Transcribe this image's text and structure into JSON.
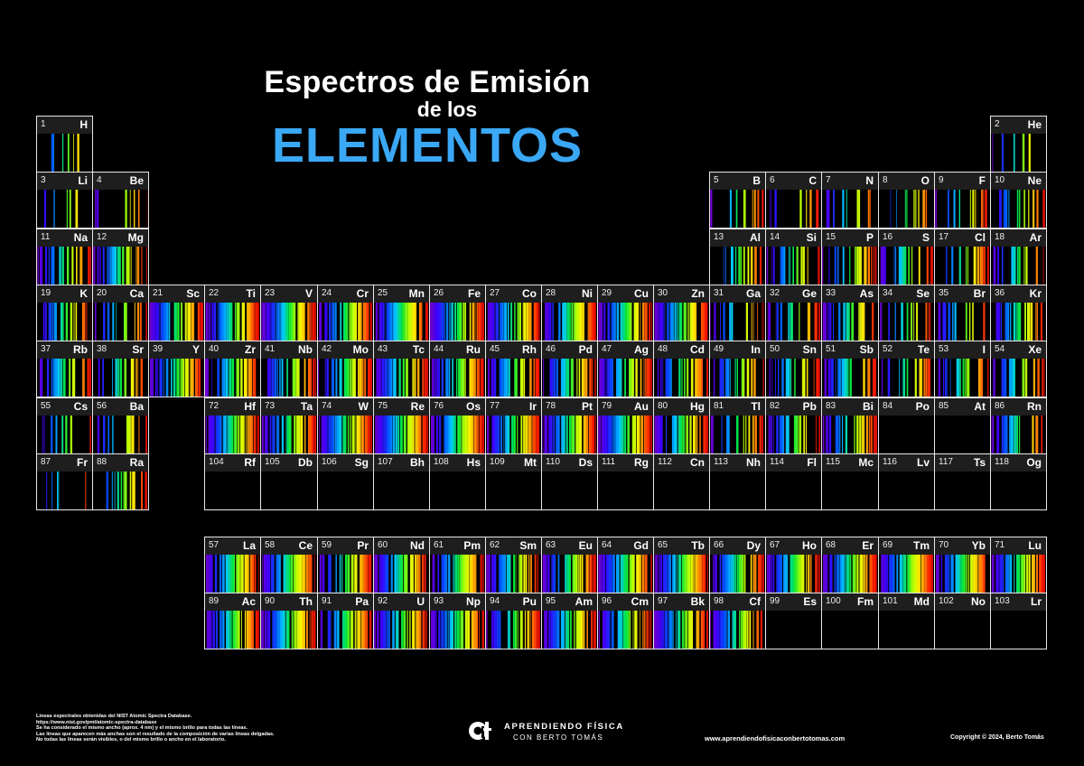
{
  "title": {
    "line1": "Espectros de Emisión",
    "line2": "de los",
    "line3": "ELEMENTOS"
  },
  "colors": {
    "accent": "#3aa8f5",
    "background": "#000000",
    "cell_border": "#e8e8e8",
    "header_band": "#1e1e1e"
  },
  "elements": [
    {
      "num": "1",
      "sym": "H",
      "row": 1,
      "col": 1
    },
    {
      "num": "2",
      "sym": "He",
      "row": 1,
      "col": 18
    },
    {
      "num": "3",
      "sym": "Li",
      "row": 2,
      "col": 1
    },
    {
      "num": "4",
      "sym": "Be",
      "row": 2,
      "col": 2
    },
    {
      "num": "5",
      "sym": "B",
      "row": 2,
      "col": 13
    },
    {
      "num": "6",
      "sym": "C",
      "row": 2,
      "col": 14
    },
    {
      "num": "7",
      "sym": "N",
      "row": 2,
      "col": 15
    },
    {
      "num": "8",
      "sym": "O",
      "row": 2,
      "col": 16
    },
    {
      "num": "9",
      "sym": "F",
      "row": 2,
      "col": 17
    },
    {
      "num": "10",
      "sym": "Ne",
      "row": 2,
      "col": 18
    },
    {
      "num": "11",
      "sym": "Na",
      "row": 3,
      "col": 1
    },
    {
      "num": "12",
      "sym": "Mg",
      "row": 3,
      "col": 2
    },
    {
      "num": "13",
      "sym": "Al",
      "row": 3,
      "col": 13
    },
    {
      "num": "14",
      "sym": "Si",
      "row": 3,
      "col": 14
    },
    {
      "num": "15",
      "sym": "P",
      "row": 3,
      "col": 15
    },
    {
      "num": "16",
      "sym": "S",
      "row": 3,
      "col": 16
    },
    {
      "num": "17",
      "sym": "Cl",
      "row": 3,
      "col": 17
    },
    {
      "num": "18",
      "sym": "Ar",
      "row": 3,
      "col": 18
    },
    {
      "num": "19",
      "sym": "K",
      "row": 4,
      "col": 1
    },
    {
      "num": "20",
      "sym": "Ca",
      "row": 4,
      "col": 2
    },
    {
      "num": "21",
      "sym": "Sc",
      "row": 4,
      "col": 3
    },
    {
      "num": "22",
      "sym": "Ti",
      "row": 4,
      "col": 4
    },
    {
      "num": "23",
      "sym": "V",
      "row": 4,
      "col": 5
    },
    {
      "num": "24",
      "sym": "Cr",
      "row": 4,
      "col": 6
    },
    {
      "num": "25",
      "sym": "Mn",
      "row": 4,
      "col": 7
    },
    {
      "num": "26",
      "sym": "Fe",
      "row": 4,
      "col": 8
    },
    {
      "num": "27",
      "sym": "Co",
      "row": 4,
      "col": 9
    },
    {
      "num": "28",
      "sym": "Ni",
      "row": 4,
      "col": 10
    },
    {
      "num": "29",
      "sym": "Cu",
      "row": 4,
      "col": 11
    },
    {
      "num": "30",
      "sym": "Zn",
      "row": 4,
      "col": 12
    },
    {
      "num": "31",
      "sym": "Ga",
      "row": 4,
      "col": 13
    },
    {
      "num": "32",
      "sym": "Ge",
      "row": 4,
      "col": 14
    },
    {
      "num": "33",
      "sym": "As",
      "row": 4,
      "col": 15
    },
    {
      "num": "34",
      "sym": "Se",
      "row": 4,
      "col": 16
    },
    {
      "num": "35",
      "sym": "Br",
      "row": 4,
      "col": 17
    },
    {
      "num": "36",
      "sym": "Kr",
      "row": 4,
      "col": 18
    },
    {
      "num": "37",
      "sym": "Rb",
      "row": 5,
      "col": 1
    },
    {
      "num": "38",
      "sym": "Sr",
      "row": 5,
      "col": 2
    },
    {
      "num": "39",
      "sym": "Y",
      "row": 5,
      "col": 3
    },
    {
      "num": "40",
      "sym": "Zr",
      "row": 5,
      "col": 4
    },
    {
      "num": "41",
      "sym": "Nb",
      "row": 5,
      "col": 5
    },
    {
      "num": "42",
      "sym": "Mo",
      "row": 5,
      "col": 6
    },
    {
      "num": "43",
      "sym": "Tc",
      "row": 5,
      "col": 7
    },
    {
      "num": "44",
      "sym": "Ru",
      "row": 5,
      "col": 8
    },
    {
      "num": "45",
      "sym": "Rh",
      "row": 5,
      "col": 9
    },
    {
      "num": "46",
      "sym": "Pd",
      "row": 5,
      "col": 10
    },
    {
      "num": "47",
      "sym": "Ag",
      "row": 5,
      "col": 11
    },
    {
      "num": "48",
      "sym": "Cd",
      "row": 5,
      "col": 12
    },
    {
      "num": "49",
      "sym": "In",
      "row": 5,
      "col": 13
    },
    {
      "num": "50",
      "sym": "Sn",
      "row": 5,
      "col": 14
    },
    {
      "num": "51",
      "sym": "Sb",
      "row": 5,
      "col": 15
    },
    {
      "num": "52",
      "sym": "Te",
      "row": 5,
      "col": 16
    },
    {
      "num": "53",
      "sym": "I",
      "row": 5,
      "col": 17
    },
    {
      "num": "54",
      "sym": "Xe",
      "row": 5,
      "col": 18
    },
    {
      "num": "55",
      "sym": "Cs",
      "row": 6,
      "col": 1
    },
    {
      "num": "56",
      "sym": "Ba",
      "row": 6,
      "col": 2
    },
    {
      "num": "72",
      "sym": "Hf",
      "row": 6,
      "col": 4
    },
    {
      "num": "73",
      "sym": "Ta",
      "row": 6,
      "col": 5
    },
    {
      "num": "74",
      "sym": "W",
      "row": 6,
      "col": 6
    },
    {
      "num": "75",
      "sym": "Re",
      "row": 6,
      "col": 7
    },
    {
      "num": "76",
      "sym": "Os",
      "row": 6,
      "col": 8
    },
    {
      "num": "77",
      "sym": "Ir",
      "row": 6,
      "col": 9
    },
    {
      "num": "78",
      "sym": "Pt",
      "row": 6,
      "col": 10
    },
    {
      "num": "79",
      "sym": "Au",
      "row": 6,
      "col": 11
    },
    {
      "num": "80",
      "sym": "Hg",
      "row": 6,
      "col": 12
    },
    {
      "num": "81",
      "sym": "Tl",
      "row": 6,
      "col": 13
    },
    {
      "num": "82",
      "sym": "Pb",
      "row": 6,
      "col": 14
    },
    {
      "num": "83",
      "sym": "Bi",
      "row": 6,
      "col": 15
    },
    {
      "num": "84",
      "sym": "Po",
      "row": 6,
      "col": 16
    },
    {
      "num": "85",
      "sym": "At",
      "row": 6,
      "col": 17
    },
    {
      "num": "86",
      "sym": "Rn",
      "row": 6,
      "col": 18
    },
    {
      "num": "87",
      "sym": "Fr",
      "row": 7,
      "col": 1
    },
    {
      "num": "88",
      "sym": "Ra",
      "row": 7,
      "col": 2
    },
    {
      "num": "104",
      "sym": "Rf",
      "row": 7,
      "col": 4
    },
    {
      "num": "105",
      "sym": "Db",
      "row": 7,
      "col": 5
    },
    {
      "num": "106",
      "sym": "Sg",
      "row": 7,
      "col": 6
    },
    {
      "num": "107",
      "sym": "Bh",
      "row": 7,
      "col": 7
    },
    {
      "num": "108",
      "sym": "Hs",
      "row": 7,
      "col": 8
    },
    {
      "num": "109",
      "sym": "Mt",
      "row": 7,
      "col": 9
    },
    {
      "num": "110",
      "sym": "Ds",
      "row": 7,
      "col": 10
    },
    {
      "num": "111",
      "sym": "Rg",
      "row": 7,
      "col": 11
    },
    {
      "num": "112",
      "sym": "Cn",
      "row": 7,
      "col": 12
    },
    {
      "num": "113",
      "sym": "Nh",
      "row": 7,
      "col": 13
    },
    {
      "num": "114",
      "sym": "Fl",
      "row": 7,
      "col": 14
    },
    {
      "num": "115",
      "sym": "Mc",
      "row": 7,
      "col": 15
    },
    {
      "num": "116",
      "sym": "Lv",
      "row": 7,
      "col": 16
    },
    {
      "num": "117",
      "sym": "Ts",
      "row": 7,
      "col": 17
    },
    {
      "num": "118",
      "sym": "Og",
      "row": 7,
      "col": 18
    },
    {
      "num": "57",
      "sym": "La",
      "row": 9,
      "col": 4
    },
    {
      "num": "58",
      "sym": "Ce",
      "row": 9,
      "col": 5
    },
    {
      "num": "59",
      "sym": "Pr",
      "row": 9,
      "col": 6
    },
    {
      "num": "60",
      "sym": "Nd",
      "row": 9,
      "col": 7
    },
    {
      "num": "61",
      "sym": "Pm",
      "row": 9,
      "col": 8
    },
    {
      "num": "62",
      "sym": "Sm",
      "row": 9,
      "col": 9
    },
    {
      "num": "63",
      "sym": "Eu",
      "row": 9,
      "col": 10
    },
    {
      "num": "64",
      "sym": "Gd",
      "row": 9,
      "col": 11
    },
    {
      "num": "65",
      "sym": "Tb",
      "row": 9,
      "col": 12
    },
    {
      "num": "66",
      "sym": "Dy",
      "row": 9,
      "col": 13
    },
    {
      "num": "67",
      "sym": "Ho",
      "row": 9,
      "col": 14
    },
    {
      "num": "68",
      "sym": "Er",
      "row": 9,
      "col": 15
    },
    {
      "num": "69",
      "sym": "Tm",
      "row": 9,
      "col": 16
    },
    {
      "num": "70",
      "sym": "Yb",
      "row": 9,
      "col": 17
    },
    {
      "num": "71",
      "sym": "Lu",
      "row": 9,
      "col": 18
    },
    {
      "num": "89",
      "sym": "Ac",
      "row": 10,
      "col": 4
    },
    {
      "num": "90",
      "sym": "Th",
      "row": 10,
      "col": 5
    },
    {
      "num": "91",
      "sym": "Pa",
      "row": 10,
      "col": 6
    },
    {
      "num": "92",
      "sym": "U",
      "row": 10,
      "col": 7
    },
    {
      "num": "93",
      "sym": "Np",
      "row": 10,
      "col": 8
    },
    {
      "num": "94",
      "sym": "Pu",
      "row": 10,
      "col": 9
    },
    {
      "num": "95",
      "sym": "Am",
      "row": 10,
      "col": 10
    },
    {
      "num": "96",
      "sym": "Cm",
      "row": 10,
      "col": 11
    },
    {
      "num": "97",
      "sym": "Bk",
      "row": 10,
      "col": 12
    },
    {
      "num": "98",
      "sym": "Cf",
      "row": 10,
      "col": 13
    },
    {
      "num": "99",
      "sym": "Es",
      "row": 10,
      "col": 14
    },
    {
      "num": "100",
      "sym": "Fm",
      "row": 10,
      "col": 15
    },
    {
      "num": "101",
      "sym": "Md",
      "row": 10,
      "col": 16
    },
    {
      "num": "102",
      "sym": "No",
      "row": 10,
      "col": 17
    },
    {
      "num": "103",
      "sym": "Lr",
      "row": 10,
      "col": 18
    }
  ],
  "footnote": [
    "Líneas espectrales obtenidas del NIST Atomic Spectra Database.",
    "https://www.nist.gov/pml/atomic-spectra-database",
    "Se ha considerado el mismo ancho (aprox. 4 nm) y el mismo brillo para todas las líneas.",
    "Las líneas que aparecen más anchas son el resultado de la composición de varias líneas delgadas.",
    "No todas las líneas serán visibles, o del mismo brillo o ancho en el laboratorio."
  ],
  "brand": {
    "line1": "APRENDIENDO FÍSICA",
    "line2": "CON BERTO TOMÁS",
    "logo_icon": "af-logo-icon"
  },
  "website": "www.aprendiendofisicaconbertotomas.com",
  "copyright": "Copyright © 2024, Berto Tomás"
}
